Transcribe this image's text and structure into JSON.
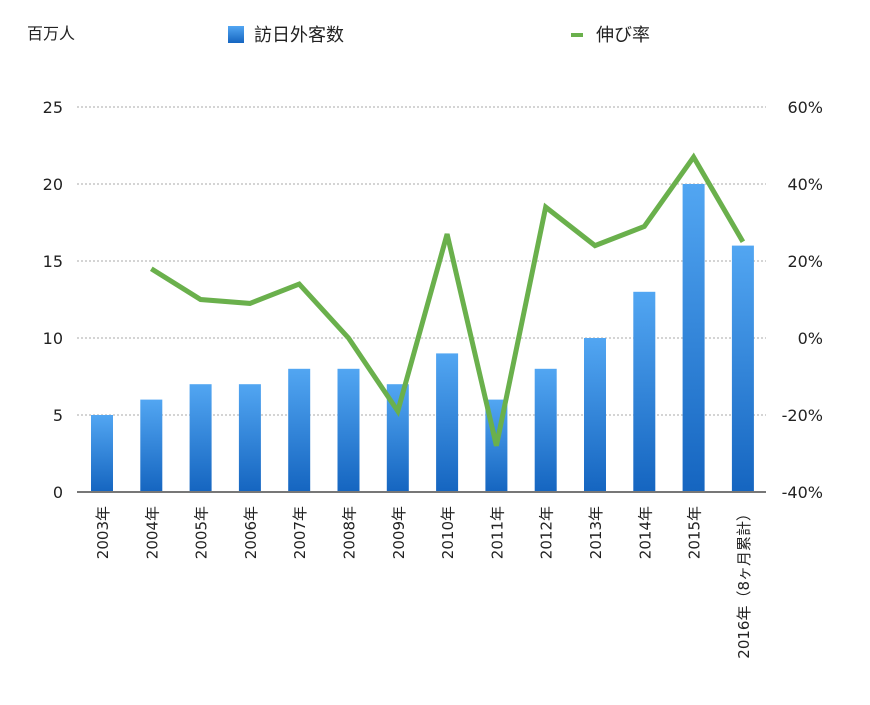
{
  "chart_data": {
    "type": "bar+line",
    "title": "",
    "unit_label": "百万人",
    "legend": [
      {
        "name": "訪日外客数",
        "type": "bar",
        "color": "#2a7fd6"
      },
      {
        "name": "伸び率",
        "type": "line",
        "color": "#6ab04c"
      }
    ],
    "legend_position": "top",
    "categories": [
      "2003年",
      "2004年",
      "2005年",
      "2006年",
      "2007年",
      "2008年",
      "2009年",
      "2010年",
      "2011年",
      "2012年",
      "2013年",
      "2014年",
      "2015年",
      "2016年（8ヶ月累計）"
    ],
    "series": [
      {
        "name": "訪日外客数",
        "axis": "left",
        "type": "bar",
        "values": [
          5,
          6,
          7,
          7,
          8,
          8,
          7,
          9,
          6,
          8,
          10,
          13,
          20,
          16
        ]
      },
      {
        "name": "伸び率",
        "axis": "right",
        "type": "line",
        "values": [
          null,
          18,
          10,
          9,
          14,
          0,
          -19,
          27,
          -28,
          34,
          24,
          29,
          47,
          25
        ]
      }
    ],
    "left_axis": {
      "label": "百万人",
      "min": 0,
      "max": 25,
      "ticks": [
        "0",
        "5",
        "10",
        "15",
        "20",
        "25"
      ]
    },
    "right_axis": {
      "label": "",
      "min": -40,
      "max": 60,
      "ticks": [
        "-40%",
        "-20%",
        "0%",
        "20%",
        "40%",
        "60%"
      ]
    },
    "grid": "dotted horizontal"
  },
  "labels": {
    "unit": "百万人",
    "legend_bar": "訪日外客数",
    "legend_line": "伸び率",
    "left_ticks": [
      "0",
      "5",
      "10",
      "15",
      "20",
      "25"
    ],
    "right_ticks": [
      "-40%",
      "-20%",
      "0%",
      "20%",
      "40%",
      "60%"
    ],
    "cat0": "2003年",
    "cat1": "2004年",
    "cat2": "2005年",
    "cat3": "2006年",
    "cat4": "2007年",
    "cat5": "2008年",
    "cat6": "2009年",
    "cat7": "2010年",
    "cat8": "2011年",
    "cat9": "2012年",
    "cat10": "2013年",
    "cat11": "2014年",
    "cat12": "2015年",
    "cat13": "2016年（8ヶ月累計）"
  }
}
